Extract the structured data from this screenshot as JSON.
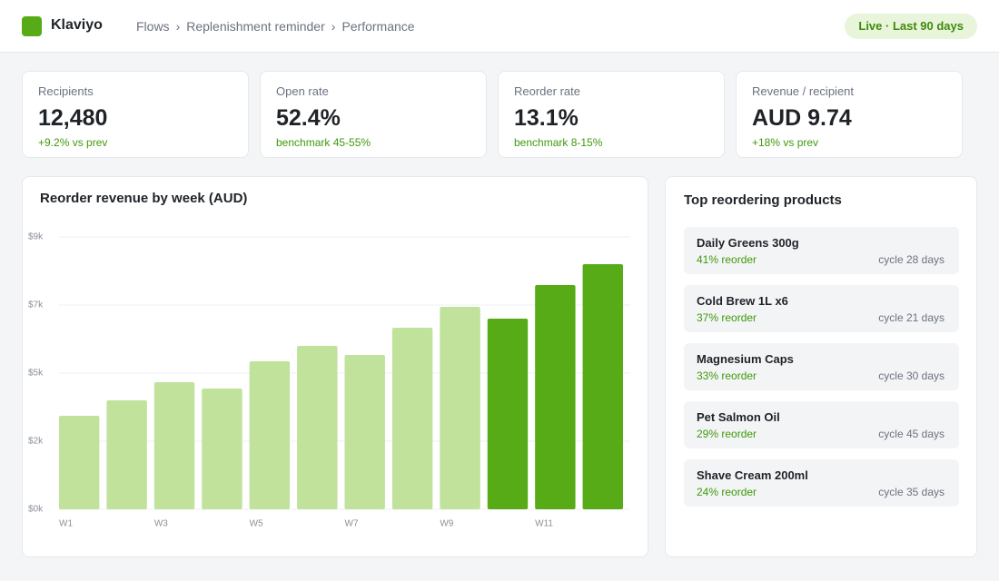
{
  "header": {
    "brand": "Klaviyo",
    "breadcrumb": [
      "Flows",
      "Replenishment reminder",
      "Performance"
    ],
    "status": "Live · Last 90 days"
  },
  "kpis": [
    {
      "label": "Recipients",
      "value": "12,480",
      "note": "+9.2% vs prev"
    },
    {
      "label": "Open rate",
      "value": "52.4%",
      "note": "benchmark 45-55%"
    },
    {
      "label": "Reorder rate",
      "value": "13.1%",
      "note": "benchmark 8-15%"
    },
    {
      "label": "Revenue / recipient",
      "value": "AUD 9.74",
      "note": "+18% vs prev"
    }
  ],
  "chart_data": {
    "type": "bar",
    "title": "Reorder revenue by week (AUD)",
    "categories": [
      "W1",
      null,
      "W3",
      null,
      "W5",
      null,
      "W7",
      null,
      "W9",
      null,
      "W11",
      null
    ],
    "values": [
      3090,
      3600,
      4200,
      3990,
      4890,
      5400,
      5100,
      6000,
      6690,
      6300,
      7410,
      8100
    ],
    "colors": [
      "#c0e29b",
      "#c0e29b",
      "#c0e29b",
      "#c0e29b",
      "#c0e29b",
      "#c0e29b",
      "#c0e29b",
      "#c0e29b",
      "#c0e29b",
      "#56ab17",
      "#56ab17",
      "#56ab17"
    ],
    "ylim": [
      0,
      9000
    ],
    "yticks": [
      {
        "value": 0,
        "label": "$0k"
      },
      {
        "value": 2250,
        "label": "$2k"
      },
      {
        "value": 4500,
        "label": "$5k"
      },
      {
        "value": 6750,
        "label": "$7k"
      },
      {
        "value": 9000,
        "label": "$9k"
      }
    ],
    "grid": true
  },
  "products": {
    "title": "Top reordering products",
    "items": [
      {
        "name": "Daily Greens 300g",
        "reorder": "41% reorder",
        "cycle": "cycle 28 days"
      },
      {
        "name": "Cold Brew 1L x6",
        "reorder": "37% reorder",
        "cycle": "cycle 21 days"
      },
      {
        "name": "Magnesium Caps",
        "reorder": "33% reorder",
        "cycle": "cycle 30 days"
      },
      {
        "name": "Pet Salmon Oil",
        "reorder": "29% reorder",
        "cycle": "cycle 45 days"
      },
      {
        "name": "Shave Cream 200ml",
        "reorder": "24% reorder",
        "cycle": "cycle 35 days"
      }
    ]
  }
}
